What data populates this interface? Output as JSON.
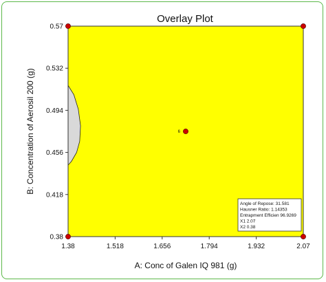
{
  "chart_data": {
    "type": "scatter",
    "title": "Overlay Plot",
    "xlabel": "A: Conc of Galen IQ 981 (g)",
    "ylabel": "B: Concentration of Aerosil 200 (g)",
    "xlim": [
      1.38,
      2.07
    ],
    "ylim": [
      0.38,
      0.57
    ],
    "x_ticks": [
      "1.38",
      "1.518",
      "1.656",
      "1.794",
      "1.932",
      "2.07"
    ],
    "y_ticks": [
      "0.38",
      "0.418",
      "0.456",
      "0.494",
      "0.532",
      "0.57"
    ],
    "grid": false,
    "colors": {
      "feasible_region": "#ffff00",
      "excluded_region": "#d9d9d9",
      "design_points": "#cc0000",
      "border": "#5bb848"
    },
    "design_points": [
      {
        "x": 1.38,
        "y": 0.57
      },
      {
        "x": 2.07,
        "y": 0.57
      },
      {
        "x": 1.38,
        "y": 0.38
      },
      {
        "x": 2.07,
        "y": 0.38
      },
      {
        "x": 1.725,
        "y": 0.475,
        "label": "6"
      }
    ],
    "excluded_region": [
      {
        "x": 1.38,
        "y": 0.5165
      },
      {
        "x": 1.397,
        "y": 0.508
      },
      {
        "x": 1.41,
        "y": 0.495
      },
      {
        "x": 1.4165,
        "y": 0.48
      },
      {
        "x": 1.414,
        "y": 0.466
      },
      {
        "x": 1.405,
        "y": 0.456
      },
      {
        "x": 1.39,
        "y": 0.448
      },
      {
        "x": 1.38,
        "y": 0.4445
      }
    ],
    "annotation_box": {
      "position": "bottom-right",
      "lines": [
        "Angle of Repose:   31.581",
        "Hausner Ratio:   1.14353",
        "Entrapment Efficien   96.9269",
        "X1   2.07",
        "X2   0.38"
      ]
    }
  }
}
